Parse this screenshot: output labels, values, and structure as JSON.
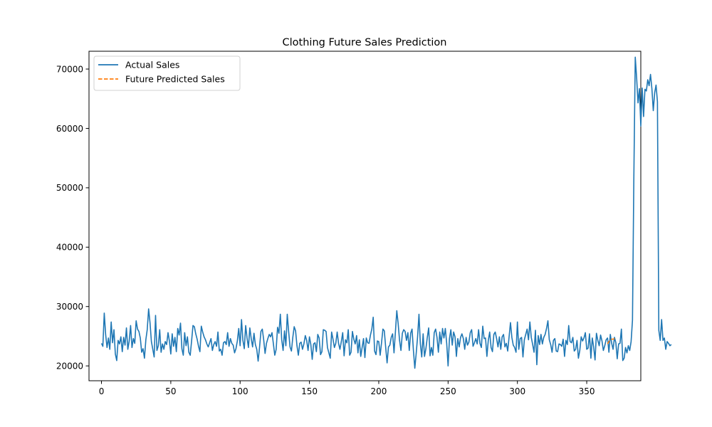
{
  "chart_data": {
    "type": "line",
    "title": "Clothing Future Sales Prediction",
    "xlabel": "",
    "ylabel": "",
    "xlim": [
      -9,
      389
    ],
    "ylim": [
      17500,
      73000
    ],
    "xticks": [
      0,
      50,
      100,
      150,
      200,
      250,
      300,
      350
    ],
    "yticks": [
      20000,
      30000,
      40000,
      50000,
      60000,
      70000
    ],
    "grid": false,
    "legend_position": "top-left",
    "series": [
      {
        "name": "Actual Sales",
        "color": "#1f77b4",
        "style": "solid",
        "x_start": 0,
        "x_step": 1,
        "values": [
          23800,
          23300,
          28900,
          25300,
          23100,
          24700,
          22800,
          27400,
          23900,
          26100,
          22000,
          20900,
          24300,
          23700,
          24900,
          22400,
          24800,
          23500,
          26400,
          22800,
          24200,
          26800,
          23100,
          24600,
          23800,
          27600,
          26200,
          25800,
          24700,
          22300,
          22900,
          21300,
          24400,
          26100,
          29600,
          27300,
          24100,
          22800,
          21500,
          28500,
          22600,
          23400,
          26100,
          22300,
          23700,
          22800,
          24100,
          23600,
          25600,
          24200,
          22000,
          25400,
          23300,
          24800,
          22400,
          26300,
          25200,
          27200,
          22900,
          21800,
          25600,
          23400,
          24900,
          22300,
          21800,
          24200,
          26800,
          26600,
          25400,
          24500,
          23300,
          22400,
          26700,
          25700,
          24900,
          24400,
          23700,
          23200,
          23900,
          24600,
          22600,
          23600,
          24100,
          23300,
          25700,
          22500,
          22800,
          21800,
          23900,
          24100,
          23600,
          25600,
          23300,
          24600,
          23800,
          23500,
          22200,
          22900,
          24200,
          26300,
          23400,
          27800,
          24300,
          22900,
          26800,
          24700,
          23100,
          26400,
          24600,
          23200,
          25500,
          23600,
          22800,
          20800,
          23100,
          25800,
          26200,
          24400,
          22100,
          23800,
          24600,
          25300,
          24900,
          25600,
          23700,
          21800,
          22800,
          26500,
          25500,
          28700,
          24400,
          22600,
          25900,
          23400,
          28700,
          25800,
          23200,
          22500,
          24800,
          26600,
          25900,
          23400,
          21800,
          23800,
          24000,
          22800,
          23700,
          25100,
          24300,
          22600,
          24900,
          23600,
          21100,
          23700,
          23900,
          22400,
          25300,
          24700,
          21900,
          22400,
          26100,
          26000,
          25800,
          23100,
          22200,
          21300,
          25700,
          24500,
          23100,
          23800,
          25700,
          23800,
          22800,
          24100,
          25600,
          21700,
          24400,
          23900,
          26100,
          21800,
          22300,
          25800,
          24500,
          23700,
          25100,
          22200,
          24400,
          21600,
          23100,
          24600,
          21400,
          24700,
          23900,
          23800,
          25200,
          26200,
          28200,
          22500,
          21900,
          24200,
          24100,
          21800,
          23900,
          26200,
          25900,
          23100,
          20500,
          23200,
          23500,
          24800,
          25400,
          22200,
          25700,
          29300,
          27100,
          24300,
          22600,
          25500,
          26100,
          25800,
          24300,
          25600,
          22600,
          25500,
          26200,
          22600,
          19600,
          22100,
          24900,
          28700,
          23700,
          21500,
          25400,
          21600,
          22900,
          24800,
          26400,
          21700,
          23100,
          21800,
          25600,
          26200,
          24800,
          22300,
          25700,
          23700,
          26300,
          24700,
          26300,
          23800,
          20000,
          24600,
          26100,
          23500,
          25700,
          24900,
          21600,
          24600,
          23200,
          24800,
          25400,
          24600,
          22800,
          24800,
          23500,
          24000,
          25600,
          26100,
          23300,
          23900,
          24600,
          23700,
          26100,
          23800,
          23100,
          26700,
          24600,
          24700,
          21600,
          24300,
          25700,
          23100,
          22400,
          25300,
          25700,
          24600,
          23200,
          24900,
          22800,
          24900,
          25300,
          23200,
          23800,
          22500,
          24900,
          27300,
          24800,
          23500,
          23100,
          22300,
          27400,
          22800,
          24600,
          24800,
          21500,
          24400,
          25300,
          26200,
          24400,
          27400,
          24800,
          23600,
          22300,
          26000,
          20200,
          25100,
          23600,
          25300,
          23700,
          24800,
          25300,
          26300,
          27600,
          24400,
          23600,
          22300,
          24300,
          24600,
          22500,
          22400,
          23700,
          23600,
          23300,
          24500,
          21600,
          24300,
          23600,
          26800,
          24100,
          23900,
          24800,
          22500,
          22800,
          24300,
          21300,
          22600,
          24900,
          24200,
          24700,
          25600,
          22800,
          23000,
          25400,
          21300,
          24700,
          23200,
          21000,
          25500,
          24300,
          23400,
          25200,
          24200,
          22600,
          23400,
          24400,
          24700,
          22300,
          25300,
          23800,
          22800,
          24800,
          23900,
          21200,
          23700,
          23800,
          26200,
          20900,
          21300,
          23100,
          22200,
          23400,
          22600,
          24100,
          27700,
          52000,
          72000,
          68500,
          64300,
          66700,
          60400,
          66800,
          62000,
          66600,
          66300,
          68200,
          67200,
          69100,
          66700,
          63000,
          66000,
          67300,
          64500,
          26000,
          24300,
          27800,
          24300,
          24700,
          22800,
          24100,
          23800,
          23400,
          23600
        ],
        "values_note": ""
      },
      {
        "name": "Future Predicted Sales",
        "color": "#ff7f0e",
        "style": "dashed",
        "x": [
          365,
          366,
          367,
          368,
          369,
          370
        ],
        "values": [
          23700,
          24100,
          24300,
          24500,
          24500,
          24600
        ]
      }
    ]
  }
}
